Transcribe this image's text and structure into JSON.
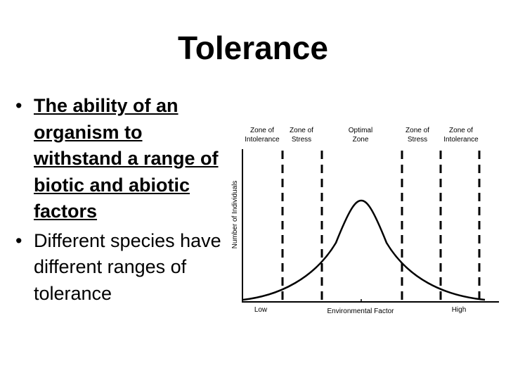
{
  "slide": {
    "title": "Tolerance",
    "bullets": [
      {
        "text": "The ability of an organism to withstand a range of biotic and abiotic factors"
      },
      {
        "text": "Different species have different ranges of tolerance"
      }
    ]
  },
  "diagram": {
    "zones": [
      {
        "line1": "Zone of",
        "line2": "Intolerance"
      },
      {
        "line1": "Zone of",
        "line2": "Stress"
      },
      {
        "line1": "Optimal",
        "line2": "Zone"
      },
      {
        "line1": "Zone of",
        "line2": "Stress"
      },
      {
        "line1": "Zone of",
        "line2": "Intolerance"
      }
    ],
    "ylabel": "Number of Individuals",
    "xlabel": "Environmental Factor",
    "x_low": "Low",
    "x_high": "High"
  }
}
